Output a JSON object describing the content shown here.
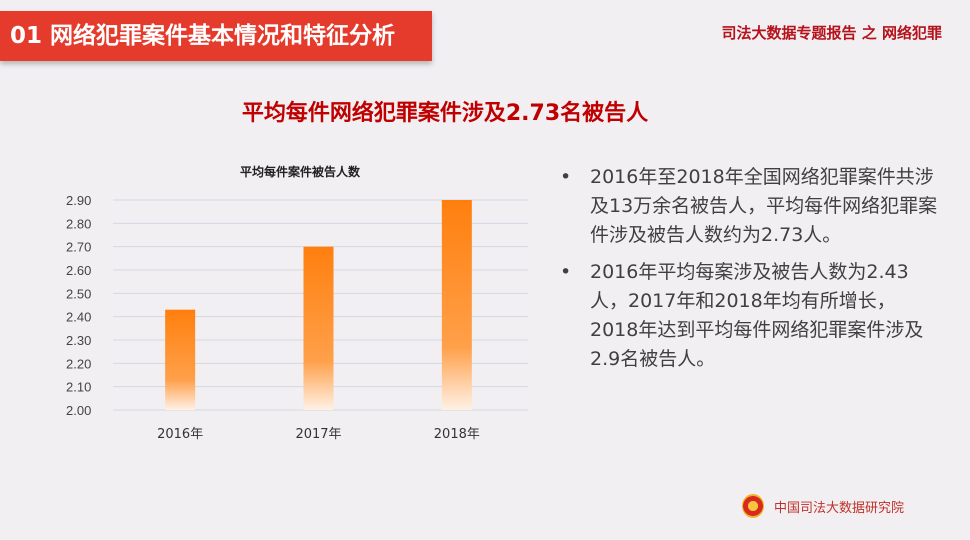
{
  "header": {
    "section_title": "01  网络犯罪案件基本情况和特征分析",
    "report_title": "司法大数据专题报告 之 网络犯罪"
  },
  "main_title": "平均每件网络犯罪案件涉及2.73名被告人",
  "chart_data": {
    "type": "bar",
    "title": "平均每件案件被告人数",
    "categories": [
      "2016年",
      "2017年",
      "2018年"
    ],
    "values": [
      2.43,
      2.7,
      2.9
    ],
    "ylim": [
      2.0,
      2.9
    ],
    "yticks": [
      "2.00",
      "2.10",
      "2.20",
      "2.30",
      "2.40",
      "2.50",
      "2.60",
      "2.70",
      "2.80",
      "2.90"
    ],
    "grid": true,
    "bar_color": "#ff7f0e"
  },
  "bullets": [
    {
      "dot": "•",
      "text": "2016年至2018年全国网络犯罪案件共涉及13万余名被告人，平均每件网络犯罪案件涉及被告人数约为2.73人。"
    },
    {
      "dot": "•",
      "text": "2016年平均每案涉及被告人数为2.43人，2017年和2018年均有所增长，2018年达到平均每件网络犯罪案件涉及2.9名被告人。"
    }
  ],
  "footer": {
    "org": "中国司法大数据研究院",
    "emblem_icon": "court-emblem-icon"
  }
}
